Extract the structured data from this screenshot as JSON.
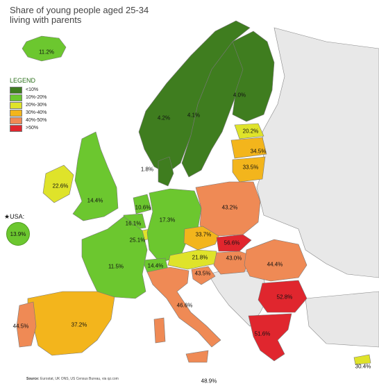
{
  "title": "Share of young people aged 25-34 living with parents",
  "title_line1": "Share of young people aged 25-34",
  "title_line2": "living with parents",
  "legend": {
    "title": "LEGEND",
    "items": [
      {
        "label": "<10%",
        "color": "#3f7d1f"
      },
      {
        "label": "10%-20%",
        "color": "#6cc72f"
      },
      {
        "label": "20%-30%",
        "color": "#dfe32a"
      },
      {
        "label": "30%-40%",
        "color": "#f3b51c"
      },
      {
        "label": "40%-50%",
        "color": "#ef8a55"
      },
      {
        "label": ">50%",
        "color": "#e0262e"
      }
    ]
  },
  "usa": {
    "label": "★USA:",
    "value": "13.9%"
  },
  "source": {
    "prefix": "Source:",
    "text": "Eurostat, UK ONS, US Census Bureau, via qz.com"
  },
  "countries": {
    "iceland": "11.2%",
    "norway": "4.2%",
    "sweden": "4.1%",
    "finland": "4.0%",
    "estonia": "20.2%",
    "latvia": "34.5%",
    "lithuania": "33.5%",
    "denmark": "1.8%",
    "ireland": "22.6%",
    "uk": "14.4%",
    "netherlands": "10.6%",
    "belgium": "16.1%",
    "luxembourg": "25.1%",
    "germany": "17.3%",
    "poland": "43.2%",
    "czechia": "33.7%",
    "slovakia": "56.6%",
    "austria": "21.8%",
    "hungary": "43.0%",
    "slovenia": "43.5%",
    "romania": "44.4%",
    "switzerland": "14.4%",
    "france": "11.5%",
    "italy": "46.6%",
    "bulgaria": "52.8%",
    "greece": "51.6%",
    "portugal": "44.5%",
    "spain": "37.2%",
    "malta": "48.9%",
    "cyprus": "30.4%"
  }
}
